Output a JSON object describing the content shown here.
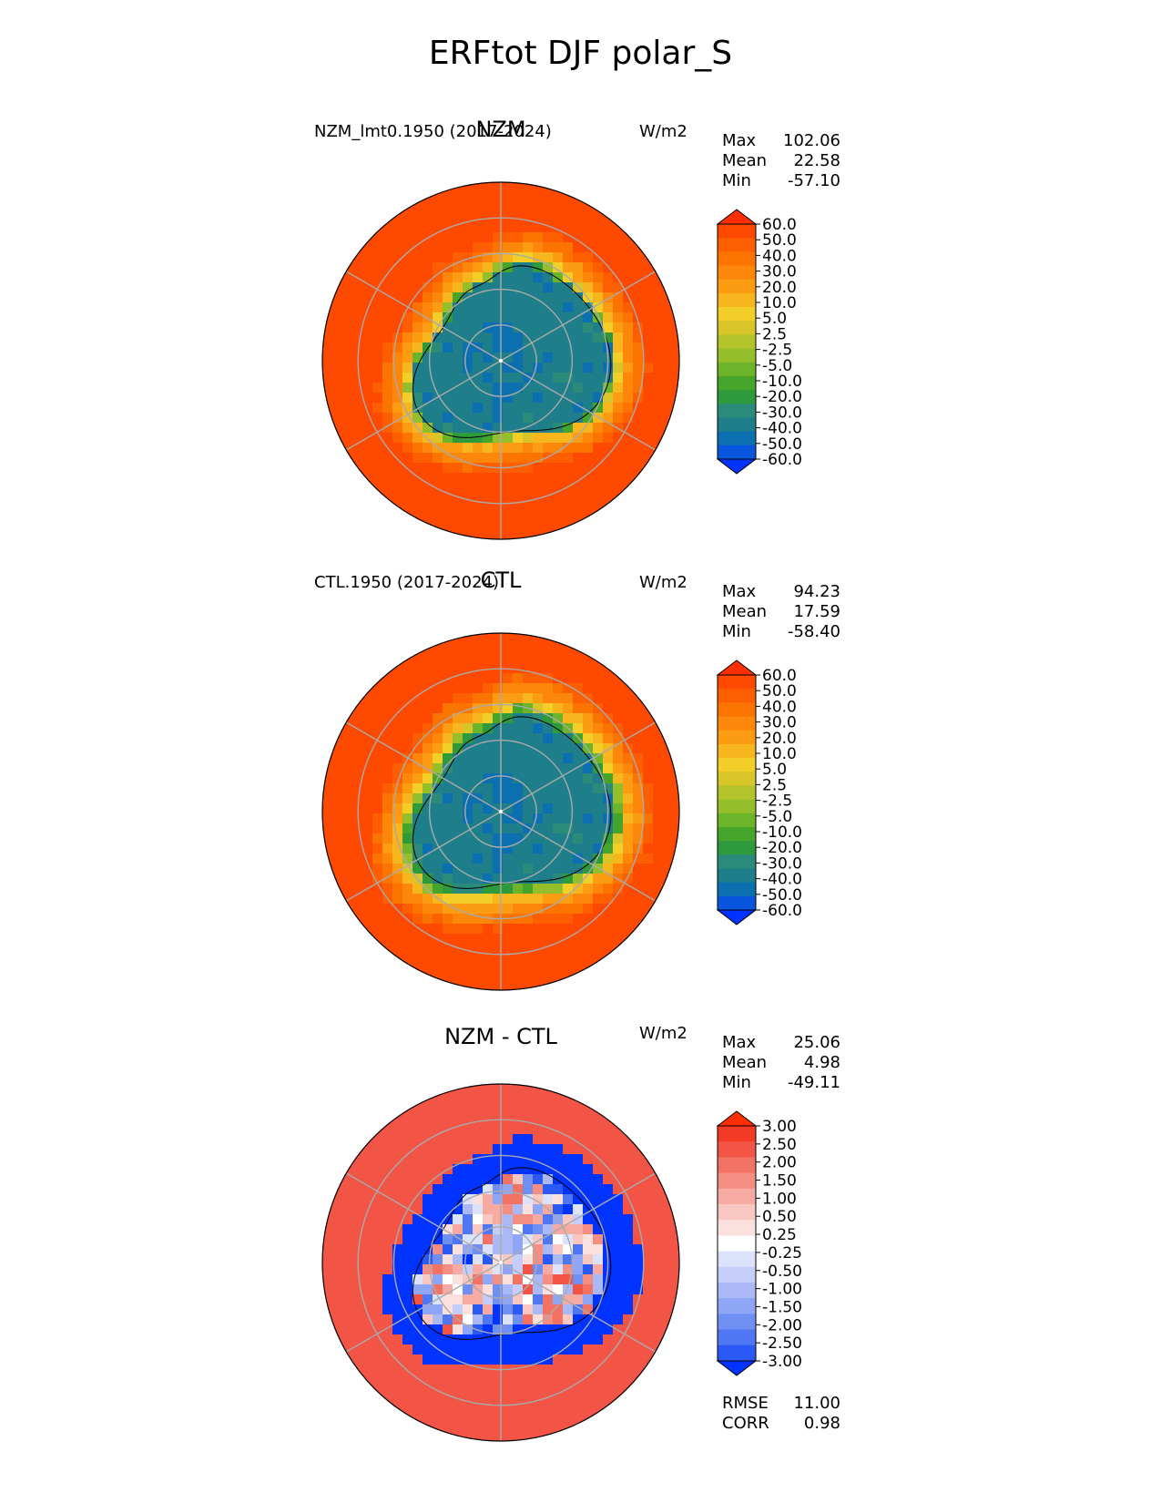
{
  "figure": {
    "title": "ERFtot DJF polar_S"
  },
  "colors": {
    "abs": [
      "#0033ff",
      "#0a55dd",
      "#0c6fb0",
      "#1e7f8a",
      "#2b8a7a",
      "#2f9a3c",
      "#45a52a",
      "#6cb52a",
      "#94bf2a",
      "#b3c42a",
      "#d8c52a",
      "#f1cf28",
      "#f7b51e",
      "#fb9c12",
      "#fc870a",
      "#fc7400",
      "#fd5e00",
      "#fd4a00",
      "#ff2f00"
    ],
    "diff": [
      "#0033ff",
      "#2b59f5",
      "#4f77f3",
      "#6f8ff3",
      "#8ea6f5",
      "#aab9f6",
      "#c4cef8",
      "#dde2fb",
      "#ffffff",
      "#fbe0dd",
      "#f9c7c2",
      "#f6aaa2",
      "#f48e82",
      "#f27263",
      "#f25445",
      "#f23a24",
      "#ff2f00"
    ]
  },
  "chart_data": [
    {
      "type": "heatmap",
      "projection": "south-polar-stereographic",
      "title": "NZM",
      "left_label": "NZM_lmt0.1950 (2017-2024)",
      "units": "W/m2",
      "stats": {
        "max": "102.06",
        "mean": "22.58",
        "min": "-57.10"
      },
      "stat_labels": {
        "max": "Max",
        "mean": "Mean",
        "min": "Min"
      },
      "colorbar": {
        "levels": [
          "60.0",
          "50.0",
          "40.0",
          "30.0",
          "20.0",
          "10.0",
          "5.0",
          "2.5",
          "-2.5",
          "-5.0",
          "-10.0",
          "-20.0",
          "-30.0",
          "-40.0",
          "-50.0",
          "-60.0"
        ],
        "extend": "both",
        "palette": "abs"
      }
    },
    {
      "type": "heatmap",
      "projection": "south-polar-stereographic",
      "title": "CTL",
      "left_label": "CTL.1950 (2017-2024)",
      "units": "W/m2",
      "stats": {
        "max": "94.23",
        "mean": "17.59",
        "min": "-58.40"
      },
      "stat_labels": {
        "max": "Max",
        "mean": "Mean",
        "min": "Min"
      },
      "colorbar": {
        "levels": [
          "60.0",
          "50.0",
          "40.0",
          "30.0",
          "20.0",
          "10.0",
          "5.0",
          "2.5",
          "-2.5",
          "-5.0",
          "-10.0",
          "-20.0",
          "-30.0",
          "-40.0",
          "-50.0",
          "-60.0"
        ],
        "extend": "both",
        "palette": "abs"
      }
    },
    {
      "type": "heatmap",
      "projection": "south-polar-stereographic",
      "title": "NZM - CTL",
      "left_label": "",
      "units": "W/m2",
      "stats": {
        "max": "25.06",
        "mean": "4.98",
        "min": "-49.11"
      },
      "stat_labels": {
        "max": "Max",
        "mean": "Mean",
        "min": "Min"
      },
      "colorbar": {
        "levels": [
          "3.00",
          "2.50",
          "2.00",
          "1.50",
          "1.00",
          "0.50",
          "0.25",
          "-0.25",
          "-0.50",
          "-1.00",
          "-1.50",
          "-2.00",
          "-2.50",
          "-3.00"
        ],
        "extend": "both",
        "palette": "diff"
      },
      "metrics": {
        "rmse_label": "RMSE",
        "rmse": "11.00",
        "corr_label": "CORR",
        "corr": "0.98"
      }
    }
  ]
}
